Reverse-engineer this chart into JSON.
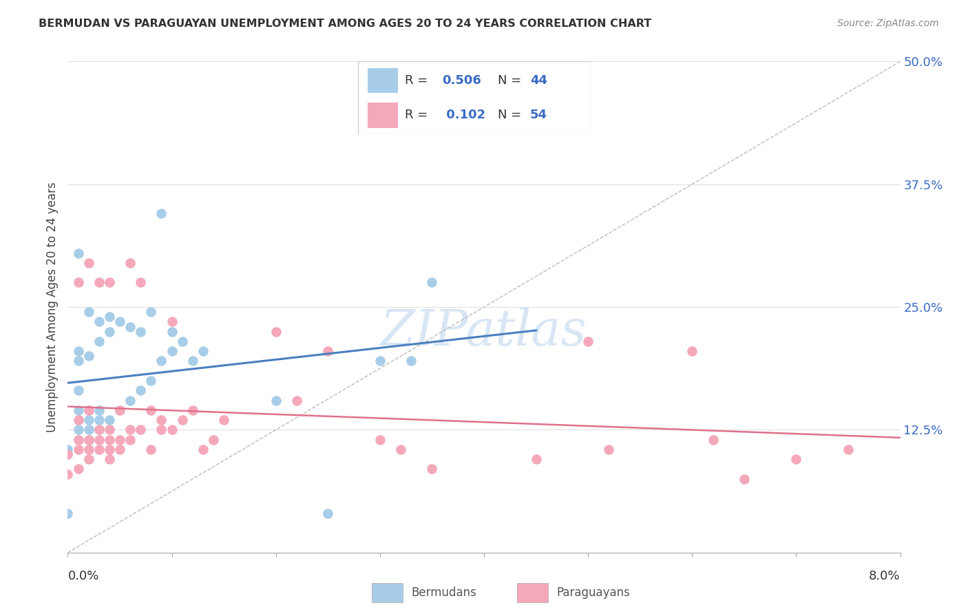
{
  "title": "BERMUDAN VS PARAGUAYAN UNEMPLOYMENT AMONG AGES 20 TO 24 YEARS CORRELATION CHART",
  "source": "Source: ZipAtlas.com",
  "ylabel": "Unemployment Among Ages 20 to 24 years",
  "xlim": [
    0.0,
    0.08
  ],
  "ylim": [
    0.0,
    0.5
  ],
  "blue_color": "#A8CDE8",
  "pink_color": "#F4A8BA",
  "blue_line_color": "#4A7FBF",
  "pink_line_color": "#E0708A",
  "diag_line_color": "#BBBBBB",
  "legend_color": "#3A6BC4",
  "label_color": "#3A6BC4",
  "title_color": "#333333",
  "source_color": "#888888",
  "grid_color": "#E0E0E0",
  "spine_color": "#AAAAAA",
  "blue_R": "0.506",
  "blue_N": "44",
  "pink_R": "0.102",
  "pink_N": "54",
  "watermark_color": "#C8DCF0",
  "bermudans_x": [
    0.0,
    0.0,
    0.001,
    0.001,
    0.001,
    0.001,
    0.001,
    0.001,
    0.001,
    0.001,
    0.002,
    0.002,
    0.002,
    0.002,
    0.002,
    0.002,
    0.003,
    0.003,
    0.003,
    0.003,
    0.003,
    0.004,
    0.004,
    0.004,
    0.005,
    0.005,
    0.006,
    0.006,
    0.007,
    0.007,
    0.008,
    0.008,
    0.009,
    0.009,
    0.01,
    0.01,
    0.011,
    0.012,
    0.013,
    0.02,
    0.025,
    0.03,
    0.033,
    0.035
  ],
  "bermudans_y": [
    0.105,
    0.04,
    0.115,
    0.125,
    0.135,
    0.145,
    0.165,
    0.195,
    0.205,
    0.305,
    0.115,
    0.125,
    0.135,
    0.145,
    0.2,
    0.245,
    0.125,
    0.135,
    0.145,
    0.215,
    0.235,
    0.135,
    0.225,
    0.24,
    0.145,
    0.235,
    0.155,
    0.23,
    0.165,
    0.225,
    0.175,
    0.245,
    0.195,
    0.345,
    0.205,
    0.225,
    0.215,
    0.195,
    0.205,
    0.155,
    0.04,
    0.195,
    0.195,
    0.275
  ],
  "paraguayans_x": [
    0.0,
    0.0,
    0.001,
    0.001,
    0.001,
    0.001,
    0.001,
    0.002,
    0.002,
    0.002,
    0.002,
    0.002,
    0.003,
    0.003,
    0.003,
    0.003,
    0.004,
    0.004,
    0.004,
    0.004,
    0.004,
    0.005,
    0.005,
    0.005,
    0.006,
    0.006,
    0.006,
    0.007,
    0.007,
    0.008,
    0.008,
    0.009,
    0.009,
    0.01,
    0.01,
    0.011,
    0.012,
    0.013,
    0.014,
    0.015,
    0.02,
    0.022,
    0.025,
    0.03,
    0.032,
    0.035,
    0.045,
    0.05,
    0.052,
    0.06,
    0.062,
    0.065,
    0.07,
    0.075
  ],
  "paraguayans_y": [
    0.08,
    0.1,
    0.085,
    0.105,
    0.115,
    0.135,
    0.275,
    0.095,
    0.105,
    0.115,
    0.145,
    0.295,
    0.105,
    0.115,
    0.125,
    0.275,
    0.095,
    0.105,
    0.115,
    0.125,
    0.275,
    0.105,
    0.115,
    0.145,
    0.115,
    0.125,
    0.295,
    0.125,
    0.275,
    0.105,
    0.145,
    0.125,
    0.135,
    0.125,
    0.235,
    0.135,
    0.145,
    0.105,
    0.115,
    0.135,
    0.225,
    0.155,
    0.205,
    0.115,
    0.105,
    0.085,
    0.095,
    0.215,
    0.105,
    0.205,
    0.115,
    0.075,
    0.095,
    0.105
  ]
}
